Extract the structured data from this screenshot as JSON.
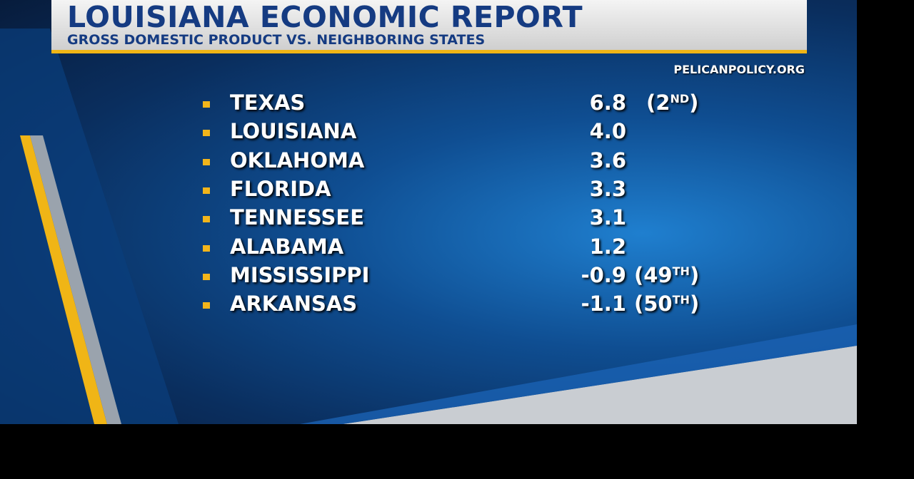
{
  "header": {
    "title": "LOUISIANA ECONOMIC REPORT",
    "subtitle": "GROSS DOMESTIC PRODUCT VS. NEIGHBORING STATES"
  },
  "source": "PELICANPOLICY.ORG",
  "rows": [
    {
      "name": "TEXAS",
      "value": "6.8",
      "rank": {
        "lead": "(2",
        "ordinal": "ND",
        "tail": ")"
      }
    },
    {
      "name": "LOUISIANA",
      "value": "4.0"
    },
    {
      "name": "OKLAHOMA",
      "value": "3.6"
    },
    {
      "name": "FLORIDA",
      "value": "3.3"
    },
    {
      "name": "TENNESSEE",
      "value": "3.1"
    },
    {
      "name": "ALABAMA",
      "value": "1.2"
    },
    {
      "name": "MISSISSIPPI",
      "value": "-0.9",
      "rank": {
        "lead": "(49",
        "ordinal": "TH",
        "tail": ")"
      }
    },
    {
      "name": "ARKANSAS",
      "value": "-1.1",
      "rank": {
        "lead": "(50",
        "ordinal": "TH",
        "tail": ")"
      }
    }
  ]
}
